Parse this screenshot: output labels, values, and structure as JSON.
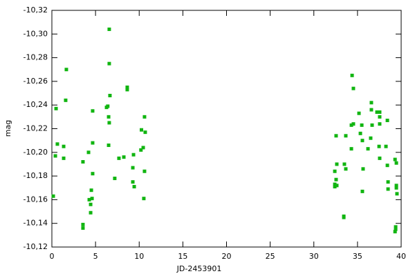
{
  "chart_data": {
    "type": "scatter",
    "xlabel": "JD-2453901",
    "ylabel": "mag",
    "color": "#11b511",
    "xlim": [
      0,
      40
    ],
    "xticks": [
      0,
      5,
      10,
      15,
      20,
      25,
      30,
      35,
      40
    ],
    "ylim": [
      -10.12,
      -10.32
    ],
    "yticks": [
      {
        "value": -10.12,
        "label": "-10,12"
      },
      {
        "value": -10.14,
        "label": "-10,14"
      },
      {
        "value": -10.16,
        "label": "-10,16"
      },
      {
        "value": -10.18,
        "label": "-10,18"
      },
      {
        "value": -10.2,
        "label": "-10,20"
      },
      {
        "value": -10.22,
        "label": "-10,22"
      },
      {
        "value": -10.24,
        "label": "-10,24"
      },
      {
        "value": -10.26,
        "label": "-10,26"
      },
      {
        "value": -10.28,
        "label": "-10,28"
      },
      {
        "value": -10.3,
        "label": "-10,30"
      },
      {
        "value": -10.32,
        "label": "-10,32"
      }
    ],
    "x": [
      0.16,
      0.48,
      0.63,
      0.4,
      1.35,
      1.35,
      1.58,
      1.66,
      3.56,
      3.56,
      3.56,
      4.2,
      4.28,
      4.44,
      4.44,
      4.6,
      4.52,
      4.67,
      4.67,
      4.67,
      6.26,
      6.4,
      6.5,
      6.57,
      6.5,
      6.57,
      6.57,
      6.65,
      7.2,
      7.68,
      8.24,
      8.63,
      8.63,
      9.27,
      9.35,
      9.27,
      9.43,
      10.2,
      10.26,
      10.46,
      10.53,
      10.61,
      10.69,
      10.61,
      32.4,
      32.4,
      32.4,
      32.55,
      32.63,
      32.55,
      32.63,
      33.43,
      33.43,
      33.5,
      33.66,
      33.66,
      34.3,
      34.3,
      34.38,
      34.53,
      34.53,
      35.17,
      35.33,
      35.49,
      35.56,
      35.56,
      35.64,
      36.2,
      36.51,
      36.59,
      36.59,
      36.67,
      37.23,
      37.54,
      37.54,
      37.47,
      37.54,
      37.54,
      38.26,
      38.42,
      38.42,
      38.5,
      38.5,
      39.3,
      39.45,
      39.45,
      39.45,
      39.52,
      39.37,
      39.37,
      39.3
    ],
    "values": [
      -10.163,
      -10.237,
      -10.207,
      -10.197,
      -10.205,
      -10.195,
      -10.244,
      -10.27,
      -10.192,
      -10.139,
      -10.136,
      -10.2,
      -10.16,
      -10.156,
      -10.149,
      -10.161,
      -10.168,
      -10.182,
      -10.235,
      -10.208,
      -10.238,
      -10.239,
      -10.23,
      -10.225,
      -10.206,
      -10.304,
      -10.275,
      -10.248,
      -10.178,
      -10.195,
      -10.196,
      -10.255,
      -10.253,
      -10.187,
      -10.198,
      -10.175,
      -10.171,
      -10.202,
      -10.219,
      -10.204,
      -10.161,
      -10.184,
      -10.217,
      -10.23,
      -10.173,
      -10.184,
      -10.171,
      -10.177,
      -10.19,
      -10.214,
      -10.172,
      -10.146,
      -10.145,
      -10.19,
      -10.186,
      -10.214,
      -10.203,
      -10.223,
      -10.265,
      -10.254,
      -10.224,
      -10.233,
      -10.216,
      -10.223,
      -10.21,
      -10.167,
      -10.186,
      -10.203,
      -10.212,
      -10.242,
      -10.236,
      -10.223,
      -10.234,
      -10.234,
      -10.23,
      -10.205,
      -10.195,
      -10.224,
      -10.205,
      -10.189,
      -10.227,
      -10.175,
      -10.169,
      -10.194,
      -10.191,
      -10.172,
      -10.17,
      -10.165,
      -10.137,
      -10.135,
      -10.133
    ]
  }
}
